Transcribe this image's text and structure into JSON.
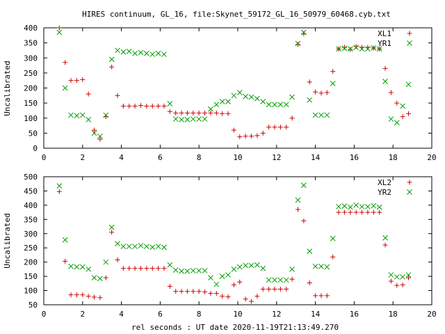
{
  "title": "HIRES continuum, GL_16, file:Skynet_59172_GL_16_50979_60468.cyb.txt",
  "xlabel": "rel seconds : UT date 2020-11-19T21:13:49.270",
  "colors": {
    "x_series": "#cc0000",
    "y_series": "#009900"
  },
  "chart_data": [
    {
      "type": "scatter",
      "ylabel": "Uncalibrated",
      "xlim": [
        0,
        20
      ],
      "ylim": [
        0,
        400
      ],
      "xticks": [
        0,
        2,
        4,
        6,
        8,
        10,
        12,
        14,
        16,
        18,
        20
      ],
      "yticks": [
        0,
        50,
        100,
        150,
        200,
        250,
        300,
        350,
        400
      ],
      "legend_position": "top-right",
      "series": [
        {
          "name": "XL1",
          "marker": "plus",
          "x": [
            0.8,
            1.1,
            1.4,
            1.7,
            2.0,
            2.3,
            2.6,
            2.9,
            3.2,
            3.5,
            3.8,
            4.1,
            4.4,
            4.7,
            5.0,
            5.3,
            5.6,
            5.9,
            6.2,
            6.5,
            6.8,
            7.1,
            7.4,
            7.7,
            8.0,
            8.3,
            8.6,
            8.9,
            9.2,
            9.5,
            9.8,
            10.1,
            10.4,
            10.7,
            11.0,
            11.3,
            11.6,
            11.9,
            12.2,
            12.5,
            12.8,
            13.1,
            13.4,
            13.7,
            14.0,
            14.3,
            14.6,
            14.9,
            15.2,
            15.5,
            15.8,
            16.1,
            16.4,
            16.7,
            17.0,
            17.3,
            17.6,
            17.9,
            18.2,
            18.5,
            18.8
          ],
          "y": [
            400,
            285,
            225,
            225,
            228,
            180,
            60,
            30,
            105,
            270,
            175,
            140,
            140,
            140,
            142,
            140,
            140,
            140,
            140,
            122,
            117,
            117,
            117,
            117,
            117,
            117,
            117,
            117,
            115,
            115,
            60,
            38,
            40,
            40,
            42,
            50,
            70,
            70,
            70,
            70,
            100,
            345,
            380,
            220,
            187,
            183,
            185,
            255,
            330,
            335,
            328,
            338,
            335,
            335,
            333,
            330,
            265,
            185,
            150,
            105,
            115
          ]
        },
        {
          "name": "YR1",
          "marker": "cross",
          "x": [
            0.8,
            1.1,
            1.4,
            1.7,
            2.0,
            2.3,
            2.6,
            2.9,
            3.2,
            3.5,
            3.8,
            4.1,
            4.4,
            4.7,
            5.0,
            5.3,
            5.6,
            5.9,
            6.2,
            6.5,
            6.8,
            7.1,
            7.4,
            7.7,
            8.0,
            8.3,
            8.6,
            8.9,
            9.2,
            9.5,
            9.8,
            10.1,
            10.4,
            10.7,
            11.0,
            11.3,
            11.6,
            11.9,
            12.2,
            12.5,
            12.8,
            13.1,
            13.4,
            13.7,
            14.0,
            14.3,
            14.6,
            14.9,
            15.2,
            15.5,
            15.8,
            16.1,
            16.4,
            16.7,
            17.0,
            17.3,
            17.6,
            17.9,
            18.2,
            18.5,
            18.8
          ],
          "y": [
            385,
            200,
            110,
            108,
            110,
            95,
            50,
            40,
            110,
            295,
            325,
            320,
            322,
            315,
            318,
            315,
            312,
            315,
            312,
            148,
            97,
            95,
            95,
            97,
            97,
            97,
            130,
            145,
            155,
            155,
            175,
            185,
            172,
            170,
            165,
            155,
            145,
            145,
            145,
            145,
            170,
            348,
            385,
            160,
            110,
            110,
            110,
            215,
            330,
            332,
            330,
            335,
            330,
            330,
            333,
            330,
            222,
            97,
            85,
            140,
            212
          ]
        }
      ]
    },
    {
      "type": "scatter",
      "ylabel": "Uncalibrated",
      "xlim": [
        0,
        20
      ],
      "ylim": [
        50,
        500
      ],
      "xticks": [
        0,
        2,
        4,
        6,
        8,
        10,
        12,
        14,
        16,
        18,
        20
      ],
      "yticks": [
        50,
        100,
        150,
        200,
        250,
        300,
        350,
        400,
        450,
        500
      ],
      "legend_position": "top-right",
      "series": [
        {
          "name": "XL2",
          "marker": "plus",
          "x": [
            0.8,
            1.1,
            1.4,
            1.7,
            2.0,
            2.3,
            2.6,
            2.9,
            3.2,
            3.5,
            3.8,
            4.1,
            4.4,
            4.7,
            5.0,
            5.3,
            5.6,
            5.9,
            6.2,
            6.5,
            6.8,
            7.1,
            7.4,
            7.7,
            8.0,
            8.3,
            8.6,
            8.9,
            9.2,
            9.5,
            9.8,
            10.1,
            10.4,
            10.7,
            11.0,
            11.3,
            11.6,
            11.9,
            12.2,
            12.5,
            12.8,
            13.1,
            13.4,
            13.7,
            14.0,
            14.3,
            14.6,
            14.9,
            15.2,
            15.5,
            15.8,
            16.1,
            16.4,
            16.7,
            17.0,
            17.3,
            17.6,
            17.9,
            18.2,
            18.5,
            18.8
          ],
          "y": [
            448,
            203,
            85,
            85,
            85,
            80,
            77,
            75,
            145,
            305,
            208,
            178,
            178,
            178,
            178,
            178,
            178,
            178,
            178,
            115,
            97,
            97,
            97,
            97,
            97,
            95,
            90,
            90,
            80,
            78,
            120,
            130,
            70,
            62,
            80,
            105,
            105,
            105,
            105,
            105,
            140,
            385,
            345,
            127,
            82,
            82,
            82,
            218,
            375,
            375,
            375,
            375,
            375,
            375,
            375,
            375,
            260,
            133,
            118,
            120,
            145
          ]
        },
        {
          "name": "YR2",
          "marker": "cross",
          "x": [
            0.8,
            1.1,
            1.4,
            1.7,
            2.0,
            2.3,
            2.6,
            2.9,
            3.2,
            3.5,
            3.8,
            4.1,
            4.4,
            4.7,
            5.0,
            5.3,
            5.6,
            5.9,
            6.2,
            6.5,
            6.8,
            7.1,
            7.4,
            7.7,
            8.0,
            8.3,
            8.6,
            8.9,
            9.2,
            9.5,
            9.8,
            10.1,
            10.4,
            10.7,
            11.0,
            11.3,
            11.6,
            11.9,
            12.2,
            12.5,
            12.8,
            13.1,
            13.4,
            13.7,
            14.0,
            14.3,
            14.6,
            14.9,
            15.2,
            15.5,
            15.8,
            16.1,
            16.4,
            16.7,
            17.0,
            17.3,
            17.6,
            17.9,
            18.2,
            18.5,
            18.8
          ],
          "y": [
            468,
            278,
            185,
            183,
            183,
            175,
            145,
            142,
            200,
            322,
            265,
            255,
            255,
            255,
            258,
            255,
            252,
            255,
            252,
            190,
            172,
            168,
            168,
            170,
            170,
            170,
            145,
            122,
            150,
            155,
            175,
            183,
            188,
            188,
            190,
            178,
            137,
            137,
            137,
            137,
            175,
            418,
            470,
            238,
            185,
            185,
            183,
            283,
            395,
            397,
            393,
            400,
            395,
            395,
            398,
            393,
            285,
            155,
            148,
            148,
            155
          ]
        }
      ]
    }
  ]
}
